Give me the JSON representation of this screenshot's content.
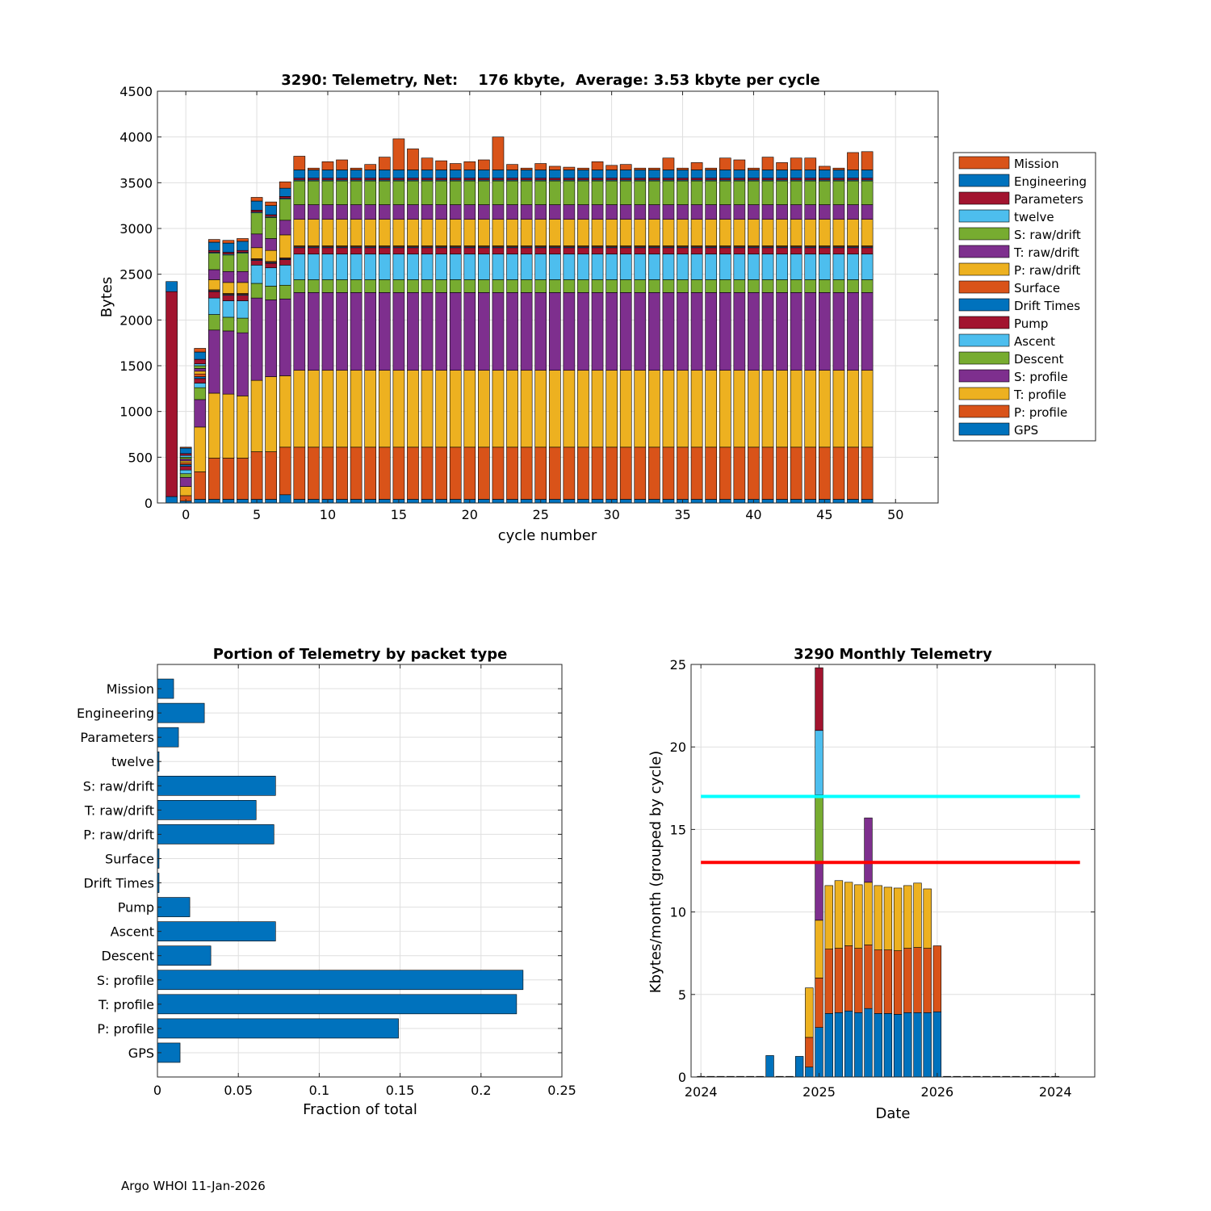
{
  "colors": {
    "GPS": "#0072BD",
    "P: profile": "#D95319",
    "T: profile": "#EDB120",
    "S: profile": "#7E2F8E",
    "Descent": "#77AC30",
    "Ascent": "#4DBEEE",
    "Pump": "#A2142F",
    "Drift Times": "#0072BD",
    "Surface": "#D95319",
    "P: raw/drift": "#EDB120",
    "T: raw/drift": "#7E2F8E",
    "S: raw/drift": "#77AC30",
    "twelve": "#4DBEEE",
    "Parameters": "#A2142F",
    "Engineering": "#0072BD",
    "Mission": "#D95319",
    "cyan_line": "#00FFFF",
    "red_line": "#FF0000",
    "grid": "#DFDFDF"
  },
  "footer": "Argo WHOI 11-Jan-2026",
  "chart_data": [
    {
      "type": "bar",
      "stacked": true,
      "title": "3290: Telemetry, Net:    176 kbyte,  Average: 3.53 kbyte per cycle",
      "xlabel": "cycle number",
      "ylabel": "Bytes",
      "xlim": [
        -2,
        53
      ],
      "ylim": [
        0,
        4500
      ],
      "xticks": [
        0,
        5,
        10,
        15,
        20,
        25,
        30,
        35,
        40,
        45,
        50
      ],
      "yticks": [
        0,
        500,
        1000,
        1500,
        2000,
        2500,
        3000,
        3500,
        4000,
        4500
      ],
      "grid": true,
      "legend_position": "right",
      "legend": [
        "Mission",
        "Engineering",
        "Parameters",
        "twelve",
        "S: raw/drift",
        "T: raw/drift",
        "P: raw/drift",
        "Surface",
        "Drift Times",
        "Pump",
        "Ascent",
        "Descent",
        "S: profile",
        "T: profile",
        "P: profile",
        "GPS"
      ],
      "stack_order": [
        "GPS",
        "P: profile",
        "T: profile",
        "S: profile",
        "Descent",
        "Ascent",
        "Pump",
        "Drift Times",
        "Surface",
        "P: raw/drift",
        "T: raw/drift",
        "S: raw/drift",
        "twelve",
        "Parameters",
        "Engineering",
        "Mission"
      ],
      "special_cycles": [
        {
          "cycle": -1,
          "segments": {
            "GPS": 70,
            "Pump": 2240,
            "Engineering": 110
          }
        },
        {
          "cycle": 0,
          "segments": {
            "GPS": 20,
            "P: profile": 60,
            "T: profile": 100,
            "S: profile": 100,
            "Descent": 40,
            "Ascent": 40,
            "Pump": 40,
            "Drift Times": 20,
            "Surface": 20,
            "P: raw/drift": 20,
            "T: raw/drift": 20,
            "S: raw/drift": 20,
            "twelve": 20,
            "Parameters": 20,
            "Engineering": 60,
            "Mission": 10
          }
        },
        {
          "cycle": 1,
          "segments": {
            "GPS": 40,
            "P: profile": 300,
            "T: profile": 490,
            "S: profile": 300,
            "Descent": 130,
            "Ascent": 50,
            "Pump": 50,
            "Drift Times": 20,
            "Surface": 30,
            "P: raw/drift": 30,
            "T: raw/drift": 30,
            "S: raw/drift": 30,
            "twelve": 20,
            "Parameters": 50,
            "Engineering": 80,
            "Mission": 40
          }
        },
        {
          "cycle": 2,
          "segments": {
            "GPS": 40,
            "P: profile": 450,
            "T: profile": 710,
            "S: profile": 690,
            "Descent": 170,
            "Ascent": 180,
            "Pump": 70,
            "Drift Times": 10,
            "Surface": 10,
            "P: raw/drift": 110,
            "T: raw/drift": 110,
            "S: raw/drift": 180,
            "twelve": 10,
            "Parameters": 20,
            "Engineering": 90,
            "Mission": 30
          }
        },
        {
          "cycle": 3,
          "segments": {
            "GPS": 40,
            "P: profile": 450,
            "T: profile": 700,
            "S: profile": 690,
            "Descent": 150,
            "Ascent": 180,
            "Pump": 60,
            "Drift Times": 10,
            "Surface": 10,
            "P: raw/drift": 120,
            "T: raw/drift": 120,
            "S: raw/drift": 180,
            "twelve": 10,
            "Parameters": 20,
            "Engineering": 100,
            "Mission": 30
          }
        },
        {
          "cycle": 4,
          "segments": {
            "GPS": 40,
            "P: profile": 450,
            "T: profile": 680,
            "S: profile": 690,
            "Descent": 160,
            "Ascent": 190,
            "Pump": 60,
            "Drift Times": 10,
            "Surface": 10,
            "P: raw/drift": 120,
            "T: raw/drift": 120,
            "S: raw/drift": 200,
            "twelve": 10,
            "Parameters": 20,
            "Engineering": 100,
            "Mission": 30
          }
        },
        {
          "cycle": 5,
          "segments": {
            "GPS": 40,
            "P: profile": 520,
            "T: profile": 780,
            "S: profile": 900,
            "Descent": 160,
            "Ascent": 200,
            "Pump": 50,
            "Drift Times": 10,
            "Surface": 10,
            "P: raw/drift": 120,
            "T: raw/drift": 150,
            "S: raw/drift": 230,
            "twelve": 10,
            "Parameters": 20,
            "Engineering": 100,
            "Mission": 40
          }
        },
        {
          "cycle": 6,
          "segments": {
            "GPS": 40,
            "P: profile": 520,
            "T: profile": 820,
            "S: profile": 840,
            "Descent": 150,
            "Ascent": 200,
            "Pump": 50,
            "Drift Times": 10,
            "Surface": 10,
            "P: raw/drift": 120,
            "T: raw/drift": 130,
            "S: raw/drift": 230,
            "twelve": 10,
            "Parameters": 20,
            "Engineering": 100,
            "Mission": 40
          }
        },
        {
          "cycle": 7,
          "segments": {
            "GPS": 90,
            "P: profile": 520,
            "T: profile": 780,
            "S: profile": 840,
            "Descent": 150,
            "Ascent": 220,
            "Pump": 60,
            "Drift Times": 10,
            "Surface": 10,
            "P: raw/drift": 250,
            "T: raw/drift": 160,
            "S: raw/drift": 230,
            "twelve": 10,
            "Parameters": 20,
            "Engineering": 90,
            "Mission": 70
          }
        }
      ],
      "regular_cycles": {
        "cycles": [
          8,
          9,
          10,
          11,
          12,
          13,
          14,
          15,
          16,
          17,
          18,
          19,
          20,
          21,
          22,
          23,
          24,
          25,
          26,
          27,
          28,
          29,
          30,
          31,
          32,
          33,
          34,
          35,
          36,
          37,
          38,
          39,
          40,
          41,
          42,
          43,
          44,
          45,
          46,
          47,
          48
        ],
        "totals": [
          3790,
          3640,
          3730,
          3750,
          3640,
          3700,
          3780,
          3980,
          3870,
          3770,
          3740,
          3710,
          3730,
          3750,
          4000,
          3700,
          3630,
          3710,
          3680,
          3670,
          3630,
          3730,
          3690,
          3700,
          3650,
          3630,
          3770,
          3640,
          3720,
          3600,
          3770,
          3750,
          3570,
          3780,
          3720,
          3770,
          3770,
          3680,
          3600,
          3830,
          3840
        ],
        "segments": {
          "GPS": 40,
          "P: profile": 570,
          "T: profile": 840,
          "S: profile": 850,
          "Descent": 140,
          "Ascent": 280,
          "Pump": 70,
          "Drift Times": 10,
          "Surface": 10,
          "P: raw/drift": 290,
          "T: raw/drift": 160,
          "S: raw/drift": 260,
          "twelve": 10,
          "Parameters": 20,
          "Engineering": 90
        }
      }
    },
    {
      "type": "barh",
      "title": "Portion of Telemetry by packet type",
      "xlabel": "Fraction of total",
      "ylabel": "",
      "xlim": [
        0,
        0.25
      ],
      "xticks": [
        0,
        0.05,
        0.1,
        0.15,
        0.2,
        0.25
      ],
      "xtick_labels": [
        "0",
        "0.05",
        "0.1",
        "0.15",
        "0.2",
        "0.25"
      ],
      "grid": true,
      "color": "#0072BD",
      "categories": [
        "Mission",
        "Engineering",
        "Parameters",
        "twelve",
        "S: raw/drift",
        "T: raw/drift",
        "P: raw/drift",
        "Surface",
        "Drift Times",
        "Pump",
        "Ascent",
        "Descent",
        "S: profile",
        "T: profile",
        "P: profile",
        "GPS"
      ],
      "values": [
        0.01,
        0.029,
        0.013,
        0.001,
        0.073,
        0.061,
        0.072,
        0.001,
        0.001,
        0.02,
        0.073,
        0.033,
        0.226,
        0.222,
        0.149,
        0.014
      ]
    },
    {
      "type": "bar",
      "stacked": true,
      "title": "3290 Monthly Telemetry",
      "xlabel": "Date",
      "ylabel": "Kbytes/month (grouped by cycle)",
      "ylim": [
        0,
        25
      ],
      "yticks": [
        0,
        5,
        10,
        15,
        20,
        25
      ],
      "xtick_labels": [
        "2024",
        "2025",
        "2026",
        "2024"
      ],
      "xtick_months": [
        0,
        12,
        24,
        36
      ],
      "xlim_months": [
        -1,
        40
      ],
      "grid": true,
      "reference_lines": [
        {
          "name": "cyan",
          "y": 17,
          "color": "#00FFFF"
        },
        {
          "name": "red",
          "y": 13,
          "color": "#FF0000"
        }
      ],
      "month_index": [
        0,
        1,
        2,
        3,
        4,
        5,
        6,
        7,
        8,
        9,
        10,
        11,
        12,
        13,
        14,
        15,
        16,
        17,
        18,
        19,
        20,
        21,
        22,
        23,
        24,
        25,
        26,
        27,
        28,
        29,
        30,
        31,
        32,
        33,
        34,
        35,
        36
      ],
      "series": [
        {
          "name": "GPS",
          "color": "#0072BD",
          "values": [
            0,
            0,
            0,
            0,
            0,
            0,
            0,
            1.3,
            0,
            0,
            1.25,
            0.6,
            3.0,
            3.85,
            3.9,
            4.0,
            3.9,
            4.15,
            3.85,
            3.85,
            3.8,
            3.9,
            3.9,
            3.9,
            3.95,
            0,
            0,
            0,
            0,
            0,
            0,
            0,
            0,
            0,
            0,
            0,
            0
          ]
        },
        {
          "name": "P: profile",
          "color": "#D95319",
          "values": [
            0,
            0,
            0,
            0,
            0,
            0,
            0,
            0,
            0,
            0,
            0,
            1.8,
            3.0,
            3.9,
            3.9,
            3.95,
            3.9,
            3.85,
            3.85,
            3.85,
            3.85,
            3.9,
            3.95,
            3.9,
            4.0,
            0,
            0,
            0,
            0,
            0,
            0,
            0,
            0,
            0,
            0,
            0,
            0
          ]
        },
        {
          "name": "T: profile",
          "color": "#EDB120",
          "values": [
            0,
            0,
            0,
            0,
            0,
            0,
            0,
            0,
            0,
            0,
            0,
            3.0,
            3.5,
            3.85,
            4.1,
            3.85,
            3.85,
            3.8,
            3.9,
            3.8,
            3.8,
            3.8,
            3.9,
            3.6,
            0,
            0,
            0,
            0,
            0,
            0,
            0,
            0,
            0,
            0,
            0,
            0,
            0
          ]
        },
        {
          "name": "S: profile",
          "color": "#7E2F8E",
          "values": [
            0,
            0,
            0,
            0,
            0,
            0,
            0,
            0,
            0,
            0,
            0,
            0,
            3.5,
            0,
            0,
            0,
            0,
            3.9,
            0,
            0,
            0,
            0,
            0,
            0,
            0,
            0,
            0,
            0,
            0,
            0,
            0,
            0,
            0,
            0,
            0,
            0,
            0
          ]
        },
        {
          "name": "Descent",
          "color": "#77AC30",
          "values": [
            0,
            0,
            0,
            0,
            0,
            0,
            0,
            0,
            0,
            0,
            0,
            0,
            4.1,
            0,
            0,
            0,
            0,
            0,
            0,
            0,
            0,
            0,
            0,
            0,
            0,
            0,
            0,
            0,
            0,
            0,
            0,
            0,
            0,
            0,
            0,
            0,
            0
          ]
        },
        {
          "name": "Ascent",
          "color": "#4DBEEE",
          "values": [
            0,
            0,
            0,
            0,
            0,
            0,
            0,
            0,
            0,
            0,
            0,
            0,
            3.9,
            0,
            0,
            0,
            0,
            0,
            0,
            0,
            0,
            0,
            0,
            0,
            0,
            0,
            0,
            0,
            0,
            0,
            0,
            0,
            0,
            0,
            0,
            0,
            0
          ]
        },
        {
          "name": "Pump",
          "color": "#A2142F",
          "values": [
            0,
            0,
            0,
            0,
            0,
            0,
            0,
            0,
            0,
            0,
            0,
            0,
            3.8,
            0,
            0,
            0,
            0,
            0,
            0,
            0,
            0,
            0,
            0,
            0,
            0,
            0,
            0,
            0,
            0,
            0,
            0,
            0,
            0,
            0,
            0,
            0,
            0
          ]
        }
      ]
    }
  ]
}
